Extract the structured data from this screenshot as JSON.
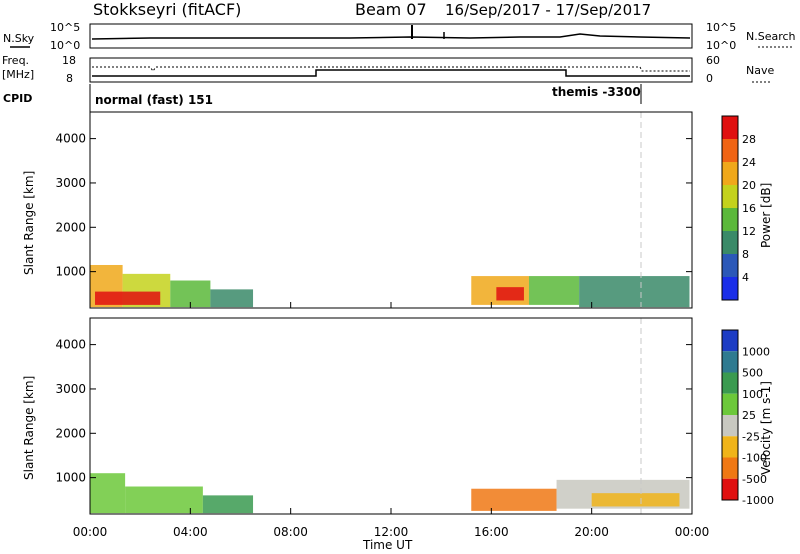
{
  "header": {
    "station": "Stokkseyri (fitACF)",
    "beam": "Beam 07",
    "date_range": "16/Sep/2017 - 17/Sep/2017"
  },
  "noise_panel": {
    "left_label": "N.Sky",
    "right_label": "N.Search",
    "left_ticks": [
      "10^5",
      "10^0"
    ],
    "right_ticks": [
      "10^5",
      "10^0"
    ]
  },
  "freq_panel": {
    "left_label_1": "Freq.",
    "left_label_2": "[MHz]",
    "left_ticks": [
      "18",
      "8"
    ],
    "right_label": "Nave",
    "right_ticks": [
      "60",
      "0"
    ]
  },
  "cpid_panel": {
    "label": "CPID",
    "program_1": "normal (fast) 151",
    "program_2": "themis -3300"
  },
  "x_axis": {
    "label": "Time UT",
    "ticks": [
      "00:00",
      "04:00",
      "08:00",
      "12:00",
      "16:00",
      "20:00",
      "00:00"
    ]
  },
  "chart_data": [
    {
      "type": "heatmap",
      "name": "power-panel",
      "ylabel": "Slant Range [km]",
      "y_ticks": [
        1000,
        2000,
        3000,
        4000
      ],
      "ylim": [
        180,
        4600
      ],
      "xlim_hours": [
        0,
        24
      ],
      "colorbar": {
        "label": "Power [dB]",
        "ticks": [
          "4",
          "8",
          "12",
          "16",
          "20",
          "24",
          "28"
        ],
        "colors": [
          "#1a2ee8",
          "#2b58b8",
          "#3a8a68",
          "#5bb83a",
          "#c4d21c",
          "#f0a81a",
          "#f06414",
          "#e01010"
        ]
      },
      "regions": [
        {
          "t0": 0.0,
          "t1": 1.3,
          "r0": 200,
          "r1": 1150,
          "level": 5
        },
        {
          "t0": 1.3,
          "t1": 3.2,
          "r0": 200,
          "r1": 950,
          "level": 4
        },
        {
          "t0": 3.2,
          "t1": 4.8,
          "r0": 200,
          "r1": 800,
          "level": 3
        },
        {
          "t0": 4.8,
          "t1": 6.5,
          "r0": 200,
          "r1": 600,
          "level": 2
        },
        {
          "t0": 15.2,
          "t1": 17.5,
          "r0": 250,
          "r1": 900,
          "level": 5
        },
        {
          "t0": 17.5,
          "t1": 19.5,
          "r0": 250,
          "r1": 900,
          "level": 3
        },
        {
          "t0": 19.5,
          "t1": 23.9,
          "r0": 200,
          "r1": 900,
          "level": 2
        },
        {
          "t0": 16.2,
          "t1": 17.3,
          "r0": 350,
          "r1": 650,
          "level": 7
        },
        {
          "t0": 0.2,
          "t1": 2.8,
          "r0": 250,
          "r1": 550,
          "level": 7
        }
      ]
    },
    {
      "type": "heatmap",
      "name": "velocity-panel",
      "ylabel": "Slant Range [km]",
      "y_ticks": [
        1000,
        2000,
        3000,
        4000
      ],
      "ylim": [
        180,
        4600
      ],
      "xlim_hours": [
        0,
        24
      ],
      "colorbar": {
        "label": "Velocity [m s-1]",
        "ticks": [
          "1000",
          "500",
          "100",
          "25",
          "-25",
          "-100",
          "-500",
          "-1000"
        ],
        "colors": [
          "#1c3cc4",
          "#2f7a90",
          "#3a9a50",
          "#6cc83a",
          "#c8c8c0",
          "#f0b41a",
          "#f07814",
          "#e01010"
        ]
      },
      "regions": [
        {
          "t0": 0.0,
          "t1": 1.4,
          "r0": 200,
          "r1": 1100,
          "level": 3
        },
        {
          "t0": 1.4,
          "t1": 4.5,
          "r0": 200,
          "r1": 800,
          "level": 3
        },
        {
          "t0": 4.5,
          "t1": 6.5,
          "r0": 200,
          "r1": 600,
          "level": 2
        },
        {
          "t0": 15.2,
          "t1": 18.6,
          "r0": 250,
          "r1": 750,
          "level": 6
        },
        {
          "t0": 18.6,
          "t1": 23.9,
          "r0": 300,
          "r1": 950,
          "level": 4
        },
        {
          "t0": 20.0,
          "t1": 23.5,
          "r0": 350,
          "r1": 650,
          "level": 5
        }
      ]
    }
  ]
}
